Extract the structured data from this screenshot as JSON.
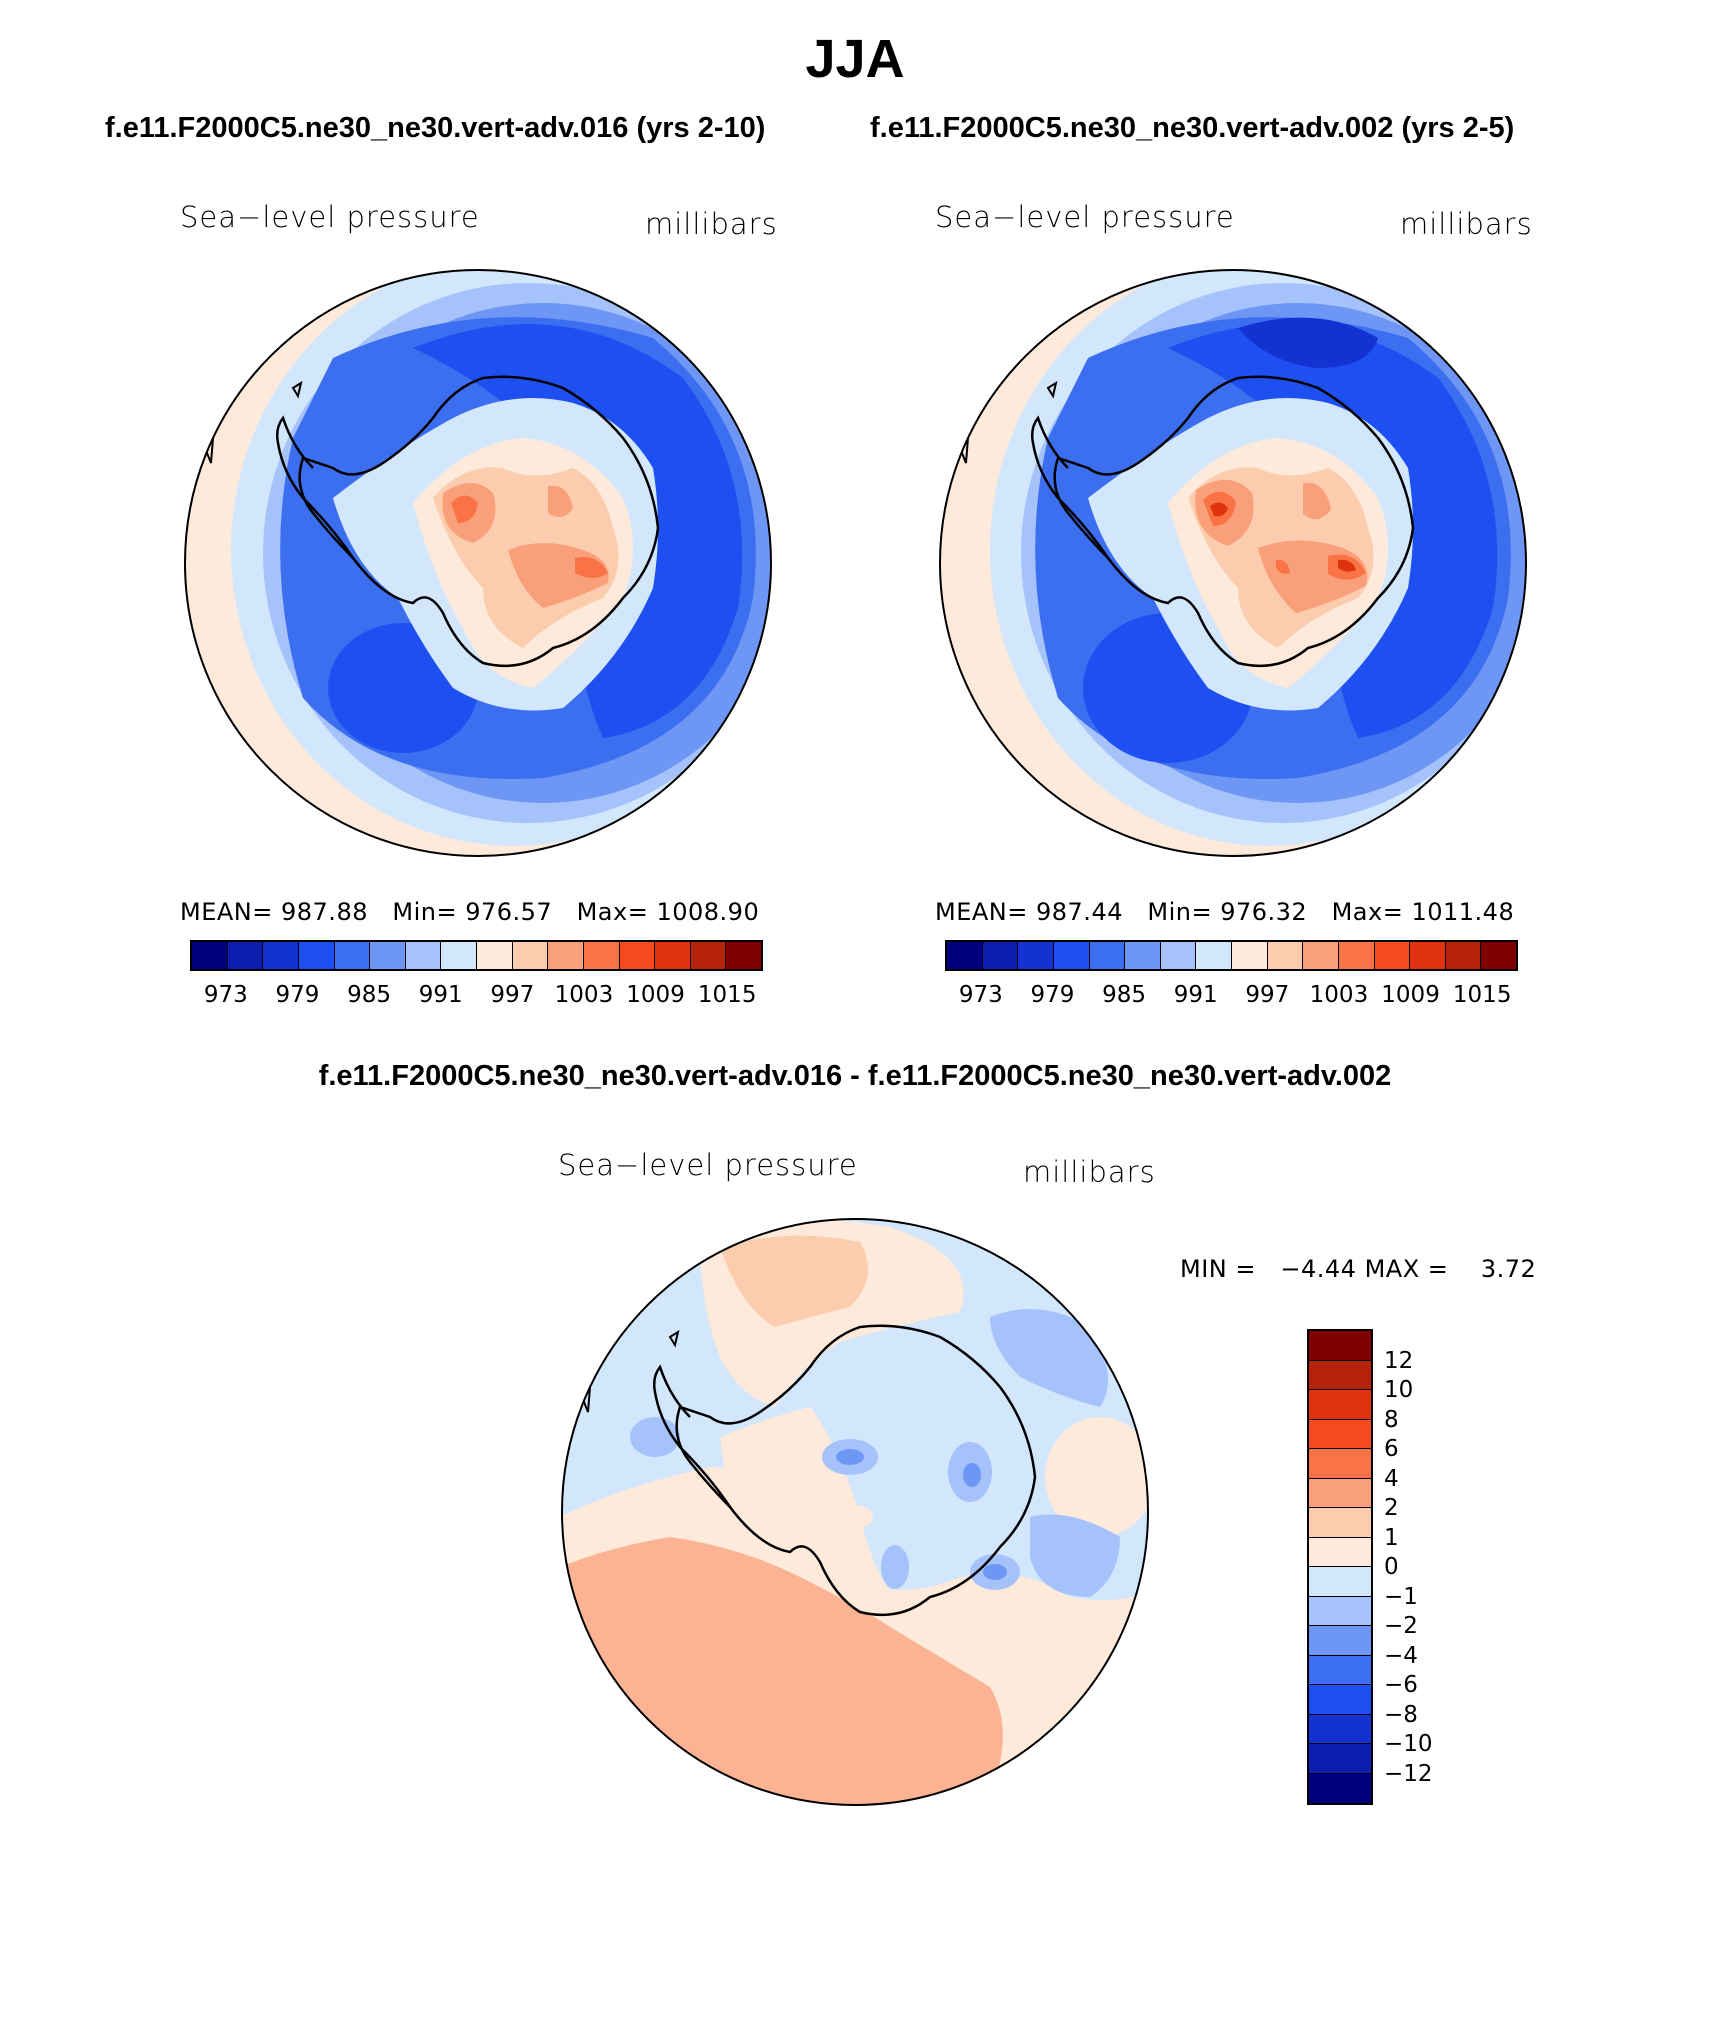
{
  "title": "JJA",
  "panels": [
    {
      "run_title": "f.e11.F2000C5.ne30_ne30.vert-adv.016 (yrs 2-10)",
      "left_label": "Sea−level pressure",
      "right_label": "millibars",
      "mean_label": "MEAN=",
      "mean": "987.88",
      "min_label": "Min=",
      "min": "976.57",
      "max_label": "Max=",
      "max": "1008.90"
    },
    {
      "run_title": "f.e11.F2000C5.ne30_ne30.vert-adv.002 (yrs 2-5)",
      "left_label": "Sea−level pressure",
      "right_label": "millibars",
      "mean_label": "MEAN=",
      "mean": "987.44",
      "min_label": "Min=",
      "min": "976.32",
      "max_label": "Max=",
      "max": "1011.48"
    }
  ],
  "colorbar": {
    "colors": [
      "#00007f",
      "#0c1eae",
      "#1432d2",
      "#1e4ff0",
      "#3c6ef0",
      "#6e96f5",
      "#a5c3fa",
      "#d2e6fc",
      "#fdeadb",
      "#fcccaf",
      "#f9a07b",
      "#fa7347",
      "#f54a1e",
      "#e1320f",
      "#b4230a",
      "#7f0000"
    ],
    "ticks": [
      "973",
      "979",
      "985",
      "991",
      "997",
      "1003",
      "1009",
      "1015"
    ]
  },
  "difference": {
    "title": "f.e11.F2000C5.ne30_ne30.vert-adv.016 - f.e11.F2000C5.ne30_ne30.vert-adv.002",
    "left_label": "Sea−level pressure",
    "right_label": "millibars",
    "min_label": "MIN =",
    "min": "−4.44",
    "max_label": "MAX =",
    "max": "3.72",
    "colors": [
      "#7f0000",
      "#b4230a",
      "#e1320f",
      "#f54a1e",
      "#fa7347",
      "#f9a07b",
      "#fcccaf",
      "#fdeadb",
      "#d2e6fc",
      "#a5c3fa",
      "#6e96f5",
      "#3c6ef0",
      "#1e4ff0",
      "#1432d2",
      "#0c1eae",
      "#00007f"
    ],
    "ticks": [
      "12",
      "10",
      "8",
      "6",
      "4",
      "2",
      "1",
      "0",
      "−1",
      "−2",
      "−4",
      "−6",
      "−8",
      "−10",
      "−12"
    ]
  }
}
